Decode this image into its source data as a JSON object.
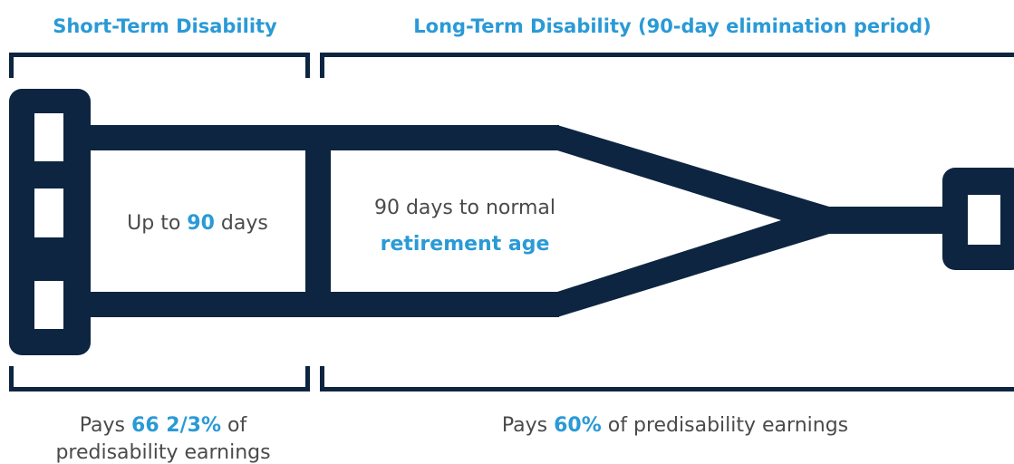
{
  "short_term": {
    "title": "Short-Term Disability",
    "duration": {
      "before": "Up to",
      "highlight": "90",
      "after": "days"
    },
    "pay": {
      "before": "Pays",
      "highlight": "66 2/3%",
      "after": "of",
      "line2": "predisability earnings"
    }
  },
  "long_term": {
    "title": "Long-Term Disability (90-day elimination period)",
    "duration": {
      "line1": "90 days to normal",
      "highlight": "retirement age"
    },
    "pay": {
      "before": "Pays",
      "highlight": "60%",
      "after": "of predisability earnings"
    }
  }
}
